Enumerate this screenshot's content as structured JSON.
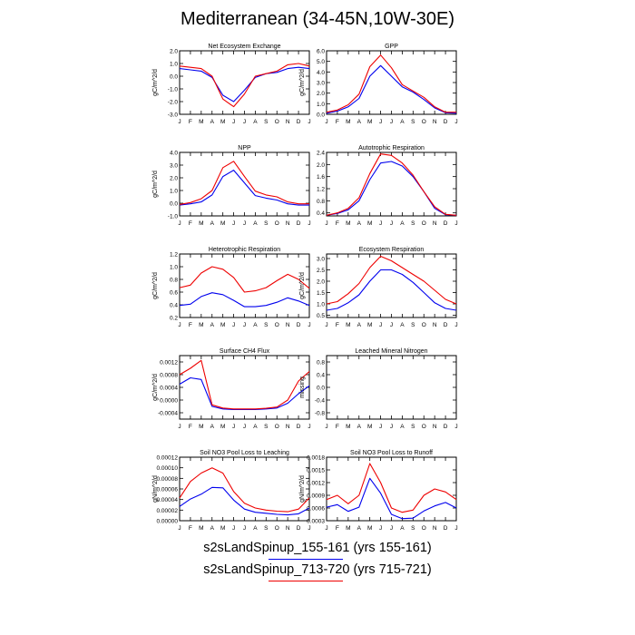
{
  "title": "Mediterranean (34-45N,10W-30E)",
  "legend": [
    {
      "label": "s2sLandSpinup_155-161 (yrs 155-161)",
      "color": "#0000ee"
    },
    {
      "label": "s2sLandSpinup_713-720 (yrs 715-721)",
      "color": "#ee0000"
    }
  ],
  "chart_data": [
    {
      "type": "line",
      "title": "Net Ecosystem Exchange",
      "ylabel": "gC/m^2/d",
      "categories": [
        "J",
        "F",
        "M",
        "A",
        "M",
        "J",
        "J",
        "A",
        "S",
        "O",
        "N",
        "D",
        "J"
      ],
      "yticks": [
        "2.0",
        "1.0",
        "0.0",
        "-1.0",
        "-2.0",
        "-3.0"
      ],
      "ylim": [
        -3.0,
        2.0
      ],
      "series": [
        {
          "name": "s2sLandSpinup_155-161",
          "color": "#0000ee",
          "values": [
            0.6,
            0.5,
            0.4,
            -0.1,
            -1.5,
            -2.0,
            -1.1,
            -0.1,
            0.2,
            0.3,
            0.6,
            0.7,
            0.6
          ]
        },
        {
          "name": "s2sLandSpinup_713-720",
          "color": "#ee0000",
          "values": [
            0.8,
            0.7,
            0.6,
            0.0,
            -1.8,
            -2.4,
            -1.4,
            0.0,
            0.2,
            0.4,
            0.9,
            1.0,
            0.8
          ]
        }
      ]
    },
    {
      "type": "line",
      "title": "GPP",
      "ylabel": "gC/m^2/d",
      "categories": [
        "J",
        "F",
        "M",
        "A",
        "M",
        "J",
        "J",
        "A",
        "S",
        "O",
        "N",
        "D",
        "J"
      ],
      "yticks": [
        "6.0",
        "5.0",
        "4.0",
        "3.0",
        "2.0",
        "1.0",
        "0.0"
      ],
      "ylim": [
        0,
        6.0
      ],
      "series": [
        {
          "name": "s2sLandSpinup_155-161",
          "color": "#0000ee",
          "values": [
            0.1,
            0.3,
            0.7,
            1.5,
            3.6,
            4.6,
            3.6,
            2.6,
            2.1,
            1.4,
            0.6,
            0.15,
            0.1
          ]
        },
        {
          "name": "s2sLandSpinup_713-720",
          "color": "#ee0000",
          "values": [
            0.2,
            0.4,
            0.9,
            1.9,
            4.5,
            5.6,
            4.4,
            2.8,
            2.2,
            1.6,
            0.7,
            0.2,
            0.2
          ]
        }
      ]
    },
    {
      "type": "line",
      "title": "NPP",
      "ylabel": "gC/m^2/d",
      "categories": [
        "J",
        "F",
        "M",
        "A",
        "M",
        "J",
        "J",
        "A",
        "S",
        "O",
        "N",
        "D",
        "J"
      ],
      "yticks": [
        "4.0",
        "3.0",
        "2.0",
        "1.0",
        "0.0",
        "-1.0"
      ],
      "ylim": [
        -1.0,
        4.0
      ],
      "series": [
        {
          "name": "s2sLandSpinup_155-161",
          "color": "#0000ee",
          "values": [
            -0.15,
            -0.05,
            0.1,
            0.65,
            2.1,
            2.6,
            1.6,
            0.6,
            0.4,
            0.25,
            -0.05,
            -0.15,
            -0.15
          ]
        },
        {
          "name": "s2sLandSpinup_713-720",
          "color": "#ee0000",
          "values": [
            -0.1,
            0.05,
            0.35,
            1.0,
            2.8,
            3.3,
            2.1,
            0.95,
            0.65,
            0.5,
            0.1,
            -0.05,
            -0.05
          ]
        }
      ]
    },
    {
      "type": "line",
      "title": "Autotrophic Respiration",
      "ylabel": "",
      "categories": [
        "J",
        "F",
        "M",
        "A",
        "M",
        "J",
        "J",
        "A",
        "S",
        "O",
        "N",
        "D",
        "J"
      ],
      "yticks": [
        "2.4",
        "2.0",
        "1.6",
        "1.2",
        "0.8",
        "0.4"
      ],
      "ylim": [
        0.3,
        2.4
      ],
      "series": [
        {
          "name": "s2sLandSpinup_155-161",
          "color": "#0000ee",
          "values": [
            0.32,
            0.38,
            0.5,
            0.8,
            1.5,
            2.05,
            2.1,
            1.95,
            1.6,
            1.1,
            0.55,
            0.34,
            0.32
          ]
        },
        {
          "name": "s2sLandSpinup_713-720",
          "color": "#ee0000",
          "values": [
            0.32,
            0.4,
            0.55,
            0.9,
            1.7,
            2.35,
            2.3,
            2.05,
            1.65,
            1.1,
            0.6,
            0.35,
            0.32
          ]
        }
      ]
    },
    {
      "type": "line",
      "title": "Heterotrophic Respiration",
      "ylabel": "gC/m^2/d",
      "categories": [
        "J",
        "F",
        "M",
        "A",
        "M",
        "J",
        "J",
        "A",
        "S",
        "O",
        "N",
        "D",
        "J"
      ],
      "yticks": [
        "1.2",
        "1.0",
        "0.8",
        "0.6",
        "0.4",
        "0.2"
      ],
      "ylim": [
        0.2,
        1.2
      ],
      "series": [
        {
          "name": "s2sLandSpinup_155-161",
          "color": "#0000ee",
          "values": [
            0.39,
            0.41,
            0.53,
            0.59,
            0.56,
            0.47,
            0.37,
            0.37,
            0.39,
            0.44,
            0.51,
            0.46,
            0.39
          ]
        },
        {
          "name": "s2sLandSpinup_713-720",
          "color": "#ee0000",
          "values": [
            0.67,
            0.71,
            0.9,
            1.0,
            0.96,
            0.83,
            0.6,
            0.62,
            0.67,
            0.78,
            0.88,
            0.8,
            0.66
          ]
        }
      ]
    },
    {
      "type": "line",
      "title": "Ecosystem Respiration",
      "ylabel": "gC/m^2/d",
      "categories": [
        "J",
        "F",
        "M",
        "A",
        "M",
        "J",
        "J",
        "A",
        "S",
        "O",
        "N",
        "D",
        "J"
      ],
      "yticks": [
        "3.0",
        "2.5",
        "2.0",
        "1.5",
        "1.0",
        "0.5"
      ],
      "ylim": [
        0.4,
        3.2
      ],
      "series": [
        {
          "name": "s2sLandSpinup_155-161",
          "color": "#0000ee",
          "values": [
            0.72,
            0.8,
            1.05,
            1.4,
            2.0,
            2.5,
            2.5,
            2.3,
            1.95,
            1.5,
            1.05,
            0.8,
            0.72
          ]
        },
        {
          "name": "s2sLandSpinup_713-720",
          "color": "#ee0000",
          "values": [
            1.0,
            1.1,
            1.45,
            1.9,
            2.6,
            3.1,
            2.9,
            2.6,
            2.3,
            2.0,
            1.6,
            1.2,
            1.0
          ]
        }
      ]
    },
    {
      "type": "line",
      "title": "Surface CH4 Flux",
      "ylabel": "gC/m^2/d",
      "categories": [
        "J",
        "F",
        "M",
        "A",
        "M",
        "J",
        "J",
        "A",
        "S",
        "O",
        "N",
        "D",
        "J"
      ],
      "yticks": [
        "0.0012",
        "0.0008",
        "0.0004",
        "0.0000",
        "-0.0004"
      ],
      "ylim": [
        -0.0006,
        0.0014
      ],
      "series": [
        {
          "name": "s2sLandSpinup_155-161",
          "color": "#0000ee",
          "values": [
            0.0005,
            0.0007,
            0.00065,
            -0.0002,
            -0.00028,
            -0.0003,
            -0.0003,
            -0.0003,
            -0.00028,
            -0.00025,
            -0.0001,
            0.0002,
            0.00045
          ]
        },
        {
          "name": "s2sLandSpinup_713-720",
          "color": "#ee0000",
          "values": [
            0.0008,
            0.001,
            0.00125,
            -0.00015,
            -0.00025,
            -0.00028,
            -0.00028,
            -0.00028,
            -0.00026,
            -0.00022,
            0.0,
            0.0006,
            0.0009
          ]
        }
      ]
    },
    {
      "type": "line",
      "title": "Leached Mineral Nitrogen",
      "ylabel": "missing",
      "categories": [
        "J",
        "F",
        "M",
        "A",
        "M",
        "J",
        "J",
        "A",
        "S",
        "O",
        "N",
        "D",
        "J"
      ],
      "yticks": [
        "0.8",
        "0.4",
        "0.0",
        "-0.4",
        "-0.8"
      ],
      "ylim": [
        -1.0,
        1.0
      ],
      "series": []
    },
    {
      "type": "line",
      "title": "Soil NO3 Pool Loss to Leaching",
      "ylabel": "gN/m^2/d",
      "categories": [
        "J",
        "F",
        "M",
        "A",
        "M",
        "J",
        "J",
        "A",
        "S",
        "O",
        "N",
        "D",
        "J"
      ],
      "yticks": [
        "0.00012",
        "0.00010",
        "0.00008",
        "0.00006",
        "0.00004",
        "0.00002",
        "0.00000"
      ],
      "ylim": [
        0,
        0.00012
      ],
      "series": [
        {
          "name": "s2sLandSpinup_155-161",
          "color": "#0000ee",
          "values": [
            2.7e-05,
            4.1e-05,
            5e-05,
            6.3e-05,
            6.2e-05,
            3.9e-05,
            2.2e-05,
            1.6e-05,
            1.4e-05,
            1.2e-05,
            1.1e-05,
            1.3e-05,
            2.4e-05
          ]
        },
        {
          "name": "s2sLandSpinup_713-720",
          "color": "#ee0000",
          "values": [
            4.3e-05,
            7.4e-05,
            9e-05,
            0.0001,
            9e-05,
            5.5e-05,
            3.3e-05,
            2.4e-05,
            2e-05,
            1.8e-05,
            1.7e-05,
            2.2e-05,
            4.3e-05
          ]
        }
      ]
    },
    {
      "type": "line",
      "title": "Soil NO3 Pool Loss to Runoff",
      "ylabel": "gN/m^2/d",
      "categories": [
        "J",
        "F",
        "M",
        "A",
        "M",
        "J",
        "J",
        "A",
        "S",
        "O",
        "N",
        "D",
        "J"
      ],
      "yticks": [
        "0.0018",
        "0.0015",
        "0.0012",
        "0.0009",
        "0.0006",
        "0.0003"
      ],
      "ylim": [
        0.0003,
        0.0018
      ],
      "series": [
        {
          "name": "s2sLandSpinup_155-161",
          "color": "#0000ee",
          "values": [
            0.00062,
            0.00068,
            0.00052,
            0.00062,
            0.0013,
            0.00095,
            0.00045,
            0.00035,
            0.00036,
            0.00053,
            0.00065,
            0.00073,
            0.0006
          ]
        },
        {
          "name": "s2sLandSpinup_713-720",
          "color": "#ee0000",
          "values": [
            0.0008,
            0.0009,
            0.0007,
            0.0009,
            0.00165,
            0.0012,
            0.0006,
            0.0005,
            0.00055,
            0.0009,
            0.00105,
            0.00098,
            0.0008
          ]
        }
      ]
    }
  ]
}
